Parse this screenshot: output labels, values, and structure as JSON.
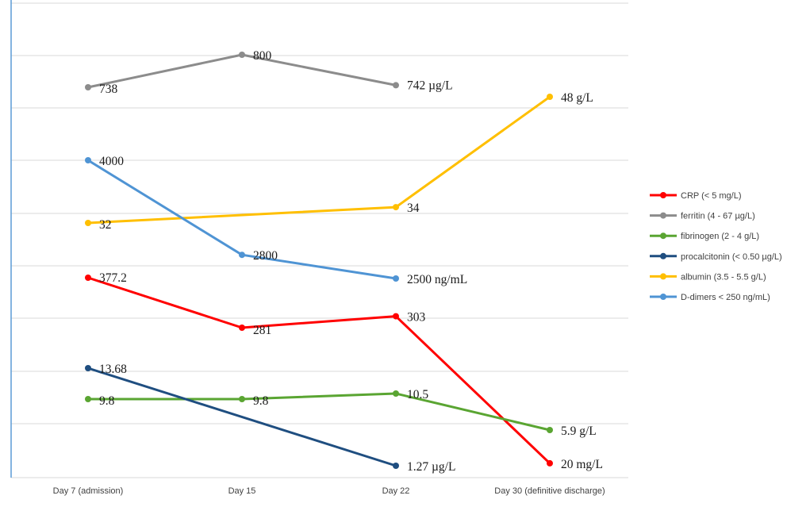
{
  "chart_data": {
    "type": "line",
    "categories": [
      "Day 7 (admission)",
      "Day 15",
      "Day 22",
      "Day 30 (definitive discharge)"
    ],
    "legend_position": "right",
    "grid": true,
    "series": [
      {
        "name": "CRP (< 5 mg/L)",
        "color": "#ff0000",
        "values": [
          377.2,
          281,
          303,
          20
        ],
        "labels": [
          "377.2",
          "281",
          "303",
          "20 mg/L"
        ]
      },
      {
        "name": "ferritin (4 - 67 µg/L)",
        "color": "#8c8c8c",
        "values": [
          738,
          800,
          742,
          null
        ],
        "labels": [
          "738",
          "800",
          "742 µg/L",
          null
        ]
      },
      {
        "name": "fibrinogen (2 - 4 g/L)",
        "color": "#5aa532",
        "values": [
          9.8,
          9.8,
          10.5,
          5.9
        ],
        "labels": [
          "9.8",
          "9.8",
          "10.5",
          "5.9 g/L"
        ]
      },
      {
        "name": "procalcitonin (< 0.50 µg/L)",
        "color": "#1f4e80",
        "values": [
          13.68,
          null,
          1.27,
          null
        ],
        "labels": [
          "13.68",
          null,
          "1.27 µg/L",
          null
        ]
      },
      {
        "name": "albumin (3.5 - 5.5 g/L)",
        "color": "#ffbf00",
        "values": [
          32,
          null,
          34,
          48
        ],
        "labels": [
          "32",
          null,
          "34",
          "48 g/L"
        ]
      },
      {
        "name": "D-dimers  < 250 ng/mL)",
        "color": "#4f94d4",
        "values": [
          4000,
          2800,
          2500,
          null
        ],
        "labels": [
          "4000",
          "2800",
          "2500 ng/mL",
          null
        ]
      }
    ]
  }
}
